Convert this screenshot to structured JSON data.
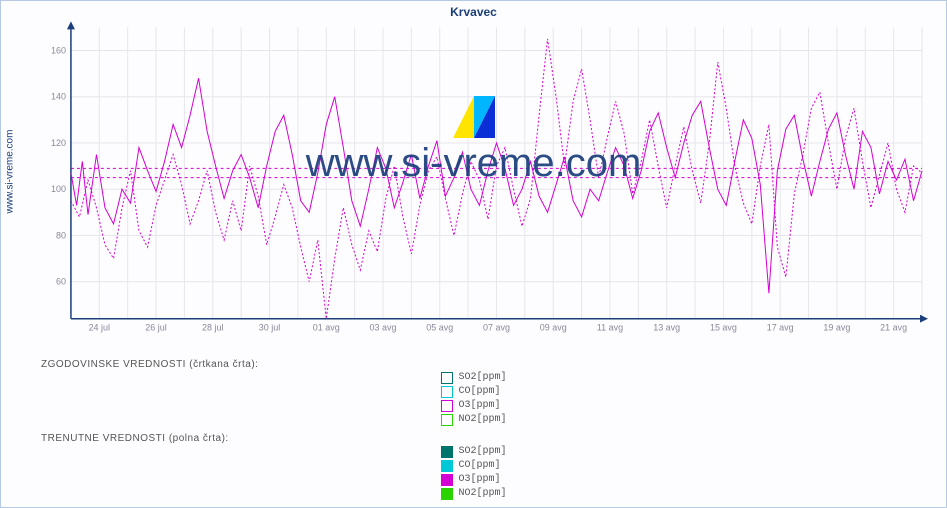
{
  "title": "Krvavec",
  "site_label": "www.si-vreme.com",
  "watermark": "www.si-vreme.com",
  "sections": {
    "historic": "ZGODOVINSKE VREDNOSTI (črtkana črta):",
    "current": "TRENUTNE VREDNOSTI (polna črta):"
  },
  "legend": {
    "historic": [
      {
        "label": "SO2[ppm]",
        "color": "#00736b"
      },
      {
        "label": "CO[ppm]",
        "color": "#00c8d6"
      },
      {
        "label": "O3[ppm]",
        "color": "#d400d4"
      },
      {
        "label": "NO2[ppm]",
        "color": "#2bd400"
      }
    ],
    "current": [
      {
        "label": "SO2[ppm]",
        "color": "#00736b"
      },
      {
        "label": "CO[ppm]",
        "color": "#00c8d6"
      },
      {
        "label": "O3[ppm]",
        "color": "#d400d4"
      },
      {
        "label": "NO2[ppm]",
        "color": "#2bd400"
      }
    ]
  },
  "chart": {
    "type": "line",
    "background_color": "#fdfdff",
    "grid_color": "#e6e6ec",
    "axis_color": "#1a3e7a",
    "tick_color": "#888899",
    "tick_font_size": 9,
    "title_font_size": 12,
    "title_color": "#1a3e7a",
    "line_width": 1,
    "xlim": [
      0,
      30
    ],
    "ylim": [
      44,
      170
    ],
    "yticks": [
      60,
      80,
      100,
      120,
      140,
      160
    ],
    "xticks": [
      {
        "pos": 1,
        "label": "24 jul"
      },
      {
        "pos": 3,
        "label": "26 jul"
      },
      {
        "pos": 5,
        "label": "28 jul"
      },
      {
        "pos": 7,
        "label": "30 jul"
      },
      {
        "pos": 9,
        "label": "01 avg"
      },
      {
        "pos": 11,
        "label": "03 avg"
      },
      {
        "pos": 13,
        "label": "05 avg"
      },
      {
        "pos": 15,
        "label": "07 avg"
      },
      {
        "pos": 17,
        "label": "09 avg"
      },
      {
        "pos": 19,
        "label": "11 avg"
      },
      {
        "pos": 21,
        "label": "13 avg"
      },
      {
        "pos": 23,
        "label": "15 avg"
      },
      {
        "pos": 25,
        "label": "17 avg"
      },
      {
        "pos": 27,
        "label": "19 avg"
      },
      {
        "pos": 29,
        "label": "21 avg"
      }
    ],
    "reference_lines": [
      105,
      109
    ],
    "reference_color": "#d400d4",
    "series": [
      {
        "name": "O3 current",
        "style": "solid",
        "color": "#d400d4",
        "data": [
          [
            0,
            107
          ],
          [
            0.2,
            93
          ],
          [
            0.4,
            112
          ],
          [
            0.6,
            89
          ],
          [
            0.9,
            115
          ],
          [
            1.2,
            92
          ],
          [
            1.5,
            85
          ],
          [
            1.8,
            100
          ],
          [
            2.1,
            94
          ],
          [
            2.4,
            118
          ],
          [
            2.7,
            108
          ],
          [
            3.0,
            99
          ],
          [
            3.3,
            112
          ],
          [
            3.6,
            128
          ],
          [
            3.9,
            118
          ],
          [
            4.2,
            132
          ],
          [
            4.5,
            148
          ],
          [
            4.8,
            125
          ],
          [
            5.1,
            110
          ],
          [
            5.4,
            96
          ],
          [
            5.7,
            108
          ],
          [
            6.0,
            115
          ],
          [
            6.3,
            105
          ],
          [
            6.6,
            92
          ],
          [
            6.9,
            110
          ],
          [
            7.2,
            125
          ],
          [
            7.5,
            132
          ],
          [
            7.8,
            115
          ],
          [
            8.1,
            95
          ],
          [
            8.4,
            90
          ],
          [
            8.7,
            107
          ],
          [
            9.0,
            128
          ],
          [
            9.3,
            140
          ],
          [
            9.6,
            118
          ],
          [
            9.9,
            95
          ],
          [
            10.2,
            84
          ],
          [
            10.5,
            100
          ],
          [
            10.8,
            118
          ],
          [
            11.1,
            109
          ],
          [
            11.4,
            92
          ],
          [
            11.7,
            103
          ],
          [
            12.0,
            115
          ],
          [
            12.3,
            96
          ],
          [
            12.6,
            110
          ],
          [
            12.9,
            121
          ],
          [
            13.2,
            97
          ],
          [
            13.5,
            105
          ],
          [
            13.8,
            116
          ],
          [
            14.1,
            100
          ],
          [
            14.4,
            93
          ],
          [
            14.7,
            108
          ],
          [
            15.0,
            120
          ],
          [
            15.3,
            109
          ],
          [
            15.6,
            93
          ],
          [
            15.9,
            100
          ],
          [
            16.2,
            112
          ],
          [
            16.5,
            97
          ],
          [
            16.8,
            90
          ],
          [
            17.1,
            102
          ],
          [
            17.4,
            114
          ],
          [
            17.7,
            95
          ],
          [
            18.0,
            88
          ],
          [
            18.3,
            100
          ],
          [
            18.6,
            95
          ],
          [
            18.9,
            107
          ],
          [
            19.2,
            118
          ],
          [
            19.5,
            110
          ],
          [
            19.8,
            96
          ],
          [
            20.1,
            108
          ],
          [
            20.4,
            125
          ],
          [
            20.7,
            133
          ],
          [
            21.0,
            118
          ],
          [
            21.3,
            105
          ],
          [
            21.6,
            120
          ],
          [
            21.9,
            132
          ],
          [
            22.2,
            138
          ],
          [
            22.5,
            118
          ],
          [
            22.8,
            100
          ],
          [
            23.1,
            93
          ],
          [
            23.4,
            112
          ],
          [
            23.7,
            130
          ],
          [
            24.0,
            122
          ],
          [
            24.3,
            102
          ],
          [
            24.6,
            55
          ],
          [
            24.9,
            108
          ],
          [
            25.2,
            126
          ],
          [
            25.5,
            132
          ],
          [
            25.8,
            113
          ],
          [
            26.1,
            97
          ],
          [
            26.4,
            112
          ],
          [
            26.7,
            126
          ],
          [
            27.0,
            133
          ],
          [
            27.3,
            115
          ],
          [
            27.6,
            100
          ],
          [
            27.9,
            125
          ],
          [
            28.2,
            118
          ],
          [
            28.5,
            98
          ],
          [
            28.8,
            112
          ],
          [
            29.1,
            104
          ],
          [
            29.4,
            113
          ],
          [
            29.7,
            95
          ],
          [
            30.0,
            108
          ]
        ]
      },
      {
        "name": "O3 historic",
        "style": "dashed",
        "color": "#d400d4",
        "data": [
          [
            0,
            95
          ],
          [
            0.3,
            88
          ],
          [
            0.6,
            104
          ],
          [
            0.9,
            92
          ],
          [
            1.2,
            76
          ],
          [
            1.5,
            70
          ],
          [
            1.8,
            92
          ],
          [
            2.1,
            108
          ],
          [
            2.4,
            82
          ],
          [
            2.7,
            75
          ],
          [
            3.0,
            93
          ],
          [
            3.3,
            104
          ],
          [
            3.6,
            115
          ],
          [
            3.9,
            102
          ],
          [
            4.2,
            85
          ],
          [
            4.5,
            95
          ],
          [
            4.8,
            108
          ],
          [
            5.1,
            90
          ],
          [
            5.4,
            78
          ],
          [
            5.7,
            95
          ],
          [
            6.0,
            82
          ],
          [
            6.3,
            110
          ],
          [
            6.6,
            97
          ],
          [
            6.9,
            76
          ],
          [
            7.2,
            88
          ],
          [
            7.5,
            102
          ],
          [
            7.8,
            92
          ],
          [
            8.1,
            75
          ],
          [
            8.4,
            60
          ],
          [
            8.7,
            78
          ],
          [
            9.0,
            44
          ],
          [
            9.3,
            70
          ],
          [
            9.6,
            92
          ],
          [
            9.9,
            76
          ],
          [
            10.2,
            65
          ],
          [
            10.5,
            82
          ],
          [
            10.8,
            73
          ],
          [
            11.1,
            96
          ],
          [
            11.4,
            110
          ],
          [
            11.7,
            88
          ],
          [
            12.0,
            72
          ],
          [
            12.3,
            93
          ],
          [
            12.6,
            108
          ],
          [
            12.9,
            114
          ],
          [
            13.2,
            96
          ],
          [
            13.5,
            80
          ],
          [
            13.8,
            98
          ],
          [
            14.1,
            112
          ],
          [
            14.4,
            104
          ],
          [
            14.7,
            87
          ],
          [
            15.0,
            110
          ],
          [
            15.3,
            118
          ],
          [
            15.6,
            100
          ],
          [
            15.9,
            84
          ],
          [
            16.2,
            96
          ],
          [
            16.5,
            132
          ],
          [
            16.8,
            165
          ],
          [
            17.1,
            140
          ],
          [
            17.4,
            110
          ],
          [
            17.7,
            138
          ],
          [
            18.0,
            152
          ],
          [
            18.3,
            130
          ],
          [
            18.6,
            105
          ],
          [
            18.9,
            122
          ],
          [
            19.2,
            138
          ],
          [
            19.5,
            124
          ],
          [
            19.8,
            98
          ],
          [
            20.1,
            112
          ],
          [
            20.4,
            130
          ],
          [
            20.7,
            110
          ],
          [
            21.0,
            92
          ],
          [
            21.3,
            110
          ],
          [
            21.6,
            127
          ],
          [
            21.9,
            108
          ],
          [
            22.2,
            94
          ],
          [
            22.5,
            120
          ],
          [
            22.8,
            155
          ],
          [
            23.1,
            135
          ],
          [
            23.4,
            110
          ],
          [
            23.7,
            94
          ],
          [
            24.0,
            85
          ],
          [
            24.3,
            110
          ],
          [
            24.6,
            128
          ],
          [
            24.9,
            75
          ],
          [
            25.2,
            62
          ],
          [
            25.5,
            98
          ],
          [
            25.8,
            115
          ],
          [
            26.1,
            135
          ],
          [
            26.4,
            142
          ],
          [
            26.7,
            120
          ],
          [
            27.0,
            100
          ],
          [
            27.3,
            122
          ],
          [
            27.6,
            135
          ],
          [
            27.9,
            112
          ],
          [
            28.2,
            92
          ],
          [
            28.5,
            106
          ],
          [
            28.8,
            120
          ],
          [
            29.1,
            100
          ],
          [
            29.4,
            90
          ],
          [
            29.7,
            110
          ],
          [
            30.0,
            107
          ]
        ]
      }
    ]
  },
  "wm_icon_colors": {
    "a": "#ffe400",
    "b": "#00b7ff",
    "c": "#0a2fd6"
  }
}
